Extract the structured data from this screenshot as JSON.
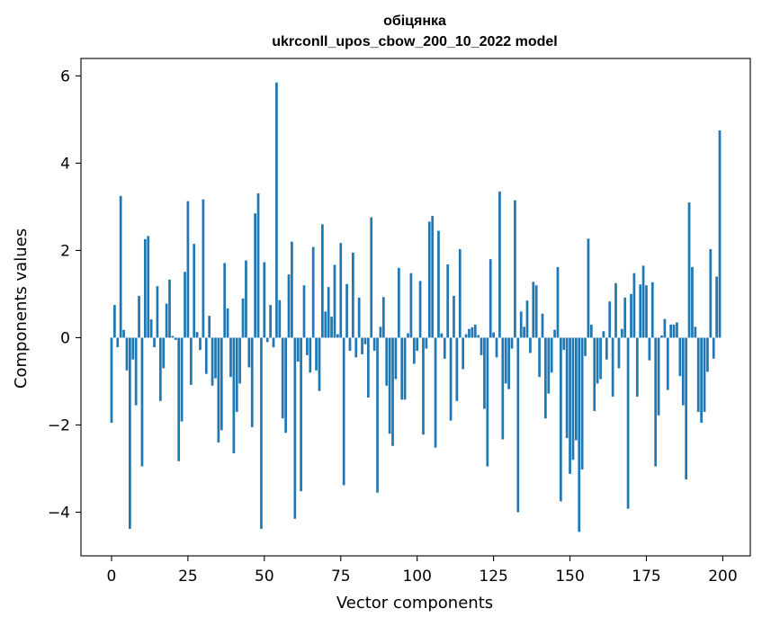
{
  "chart_data": {
    "type": "bar",
    "title": "обіцянка",
    "subtitle": "ukrconll_upos_cbow_200_10_2022 model",
    "xlabel": "Vector components",
    "ylabel": "Components values",
    "xlim": [
      -10,
      209
    ],
    "ylim": [
      -5.0,
      6.4
    ],
    "xticks": [
      0,
      25,
      50,
      75,
      100,
      125,
      150,
      175,
      200
    ],
    "yticks": [
      -4,
      -2,
      0,
      2,
      4,
      6
    ],
    "bar_color": "#1f77b4",
    "grid": false,
    "values": [
      -1.95,
      0.75,
      -0.22,
      3.25,
      0.18,
      -0.75,
      -4.38,
      -0.5,
      -1.55,
      0.96,
      -2.95,
      2.26,
      2.33,
      0.42,
      -0.22,
      1.18,
      -1.45,
      -0.7,
      0.78,
      1.33,
      0.04,
      -0.05,
      -2.83,
      -1.92,
      1.51,
      3.13,
      -1.08,
      2.15,
      0.13,
      -0.28,
      3.17,
      -0.83,
      0.5,
      -1.1,
      -0.93,
      -2.4,
      -2.12,
      1.71,
      0.67,
      -0.9,
      -2.65,
      -1.7,
      -1.05,
      0.9,
      1.77,
      -0.68,
      -2.05,
      2.85,
      3.31,
      -4.38,
      1.73,
      -0.1,
      0.75,
      -0.22,
      5.85,
      0.86,
      -1.85,
      -2.18,
      1.45,
      2.2,
      -4.15,
      -0.55,
      -3.52,
      1.2,
      -0.4,
      -0.8,
      2.08,
      -0.75,
      -1.22,
      2.6,
      0.6,
      1.16,
      0.48,
      1.67,
      0.08,
      2.17,
      -3.38,
      1.23,
      -0.3,
      1.95,
      -0.45,
      0.92,
      -0.38,
      -0.15,
      -1.37,
      2.76,
      -0.3,
      -3.55,
      0.25,
      0.93,
      -1.1,
      -2.2,
      -2.48,
      -0.95,
      1.6,
      -1.42,
      -1.42,
      0.1,
      1.48,
      -0.6,
      -0.3,
      1.3,
      -2.22,
      -0.25,
      2.66,
      2.79,
      -2.52,
      2.45,
      0.1,
      -0.48,
      1.68,
      -1.9,
      0.96,
      -1.45,
      2.03,
      -0.72,
      0.08,
      0.2,
      0.24,
      0.3,
      0.06,
      -0.4,
      -1.63,
      -2.95,
      1.8,
      0.12,
      -0.45,
      3.35,
      -2.33,
      -1.05,
      -1.18,
      -0.25,
      3.15,
      -4.0,
      0.6,
      0.25,
      0.85,
      -0.35,
      1.28,
      1.2,
      -0.9,
      0.55,
      -1.85,
      -1.28,
      -0.8,
      0.18,
      1.62,
      -3.75,
      -0.28,
      -2.3,
      -3.12,
      -2.8,
      -2.35,
      -4.45,
      -3.02,
      -0.42,
      2.27,
      0.3,
      -1.68,
      -1.05,
      -0.95,
      0.15,
      -0.5,
      0.83,
      -1.35,
      1.25,
      -0.7,
      0.2,
      0.92,
      -3.92,
      1.0,
      1.48,
      -1.35,
      1.22,
      1.65,
      1.2,
      -0.52,
      1.27,
      -2.95,
      -1.78,
      0.05,
      0.43,
      -1.2,
      0.3,
      0.3,
      0.35,
      -0.88,
      -1.55,
      -3.25,
      3.1,
      1.62,
      0.25,
      -1.7,
      -1.95,
      -1.7,
      -0.78,
      2.03,
      -0.48,
      1.4,
      4.75
    ]
  }
}
